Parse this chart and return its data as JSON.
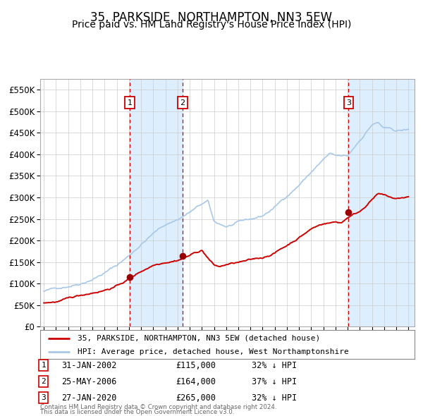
{
  "title": "35, PARKSIDE, NORTHAMPTON, NN3 5EW",
  "subtitle": "Price paid vs. HM Land Registry's House Price Index (HPI)",
  "ylim": [
    0,
    575000
  ],
  "yticks": [
    0,
    50000,
    100000,
    150000,
    200000,
    250000,
    300000,
    350000,
    400000,
    450000,
    500000,
    550000
  ],
  "ytick_labels": [
    "£0",
    "£50K",
    "£100K",
    "£150K",
    "£200K",
    "£250K",
    "£300K",
    "£350K",
    "£400K",
    "£450K",
    "£500K",
    "£550K"
  ],
  "hpi_color": "#a8c8e8",
  "price_color": "#cc0000",
  "vline_color": "#cc0000",
  "shade_color": "#ddeeff",
  "background_color": "#ffffff",
  "grid_color": "#cccccc",
  "title_fontsize": 12,
  "subtitle_fontsize": 10,
  "xlim_left": 1994.7,
  "xlim_right": 2025.5,
  "transactions": [
    {
      "num": 1,
      "date_num": 2002.08,
      "price": 115000,
      "label": "31-JAN-2002",
      "price_str": "£115,000",
      "pct": "32% ↓ HPI"
    },
    {
      "num": 2,
      "date_num": 2006.4,
      "price": 164000,
      "label": "25-MAY-2006",
      "price_str": "£164,000",
      "pct": "37% ↓ HPI"
    },
    {
      "num": 3,
      "date_num": 2020.07,
      "price": 265000,
      "label": "27-JAN-2020",
      "price_str": "£265,000",
      "pct": "32% ↓ HPI"
    }
  ],
  "legend_line1": "35, PARKSIDE, NORTHAMPTON, NN3 5EW (detached house)",
  "legend_line2": "HPI: Average price, detached house, West Northamptonshire",
  "footer1": "Contains HM Land Registry data © Crown copyright and database right 2024.",
  "footer2": "This data is licensed under the Open Government Licence v3.0.",
  "marker_color": "#990000",
  "number_box_color": "#cc0000"
}
